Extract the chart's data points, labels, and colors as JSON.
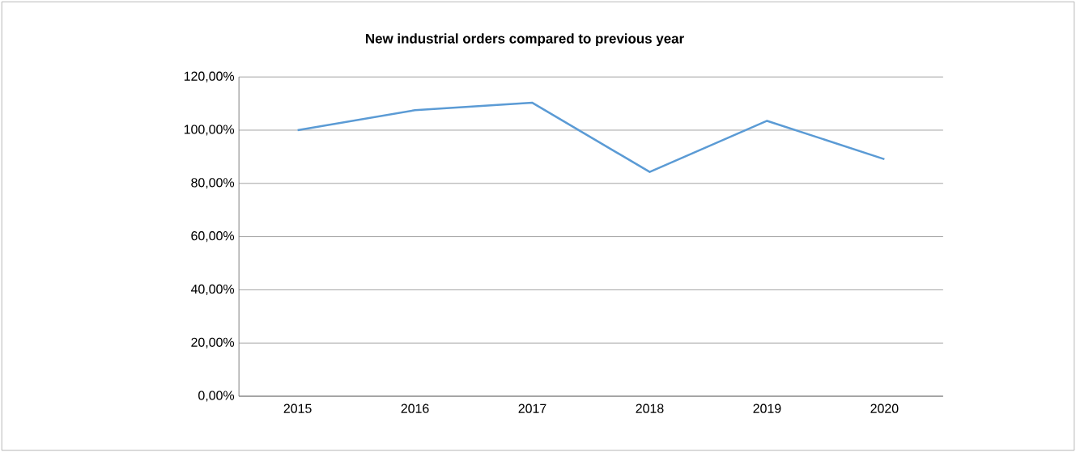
{
  "chart_data": {
    "type": "line",
    "title": "New industrial orders compared to previous year",
    "categories": [
      "2015",
      "2016",
      "2017",
      "2018",
      "2019",
      "2020"
    ],
    "values": [
      100,
      107.5,
      110.3,
      84.3,
      103.5,
      89.1
    ],
    "color": "#5b9bd5",
    "ylim": [
      0,
      120
    ],
    "yticks": [
      {
        "value": 0,
        "label": "0,00%"
      },
      {
        "value": 20,
        "label": "20,00%"
      },
      {
        "value": 40,
        "label": "40,00%"
      },
      {
        "value": 60,
        "label": "60,00%"
      },
      {
        "value": 80,
        "label": "80,00%"
      },
      {
        "value": 100,
        "label": "100,00%"
      },
      {
        "value": 120,
        "label": "120,00%"
      }
    ],
    "grid": "y",
    "marker": "none",
    "line_style": "solid"
  }
}
